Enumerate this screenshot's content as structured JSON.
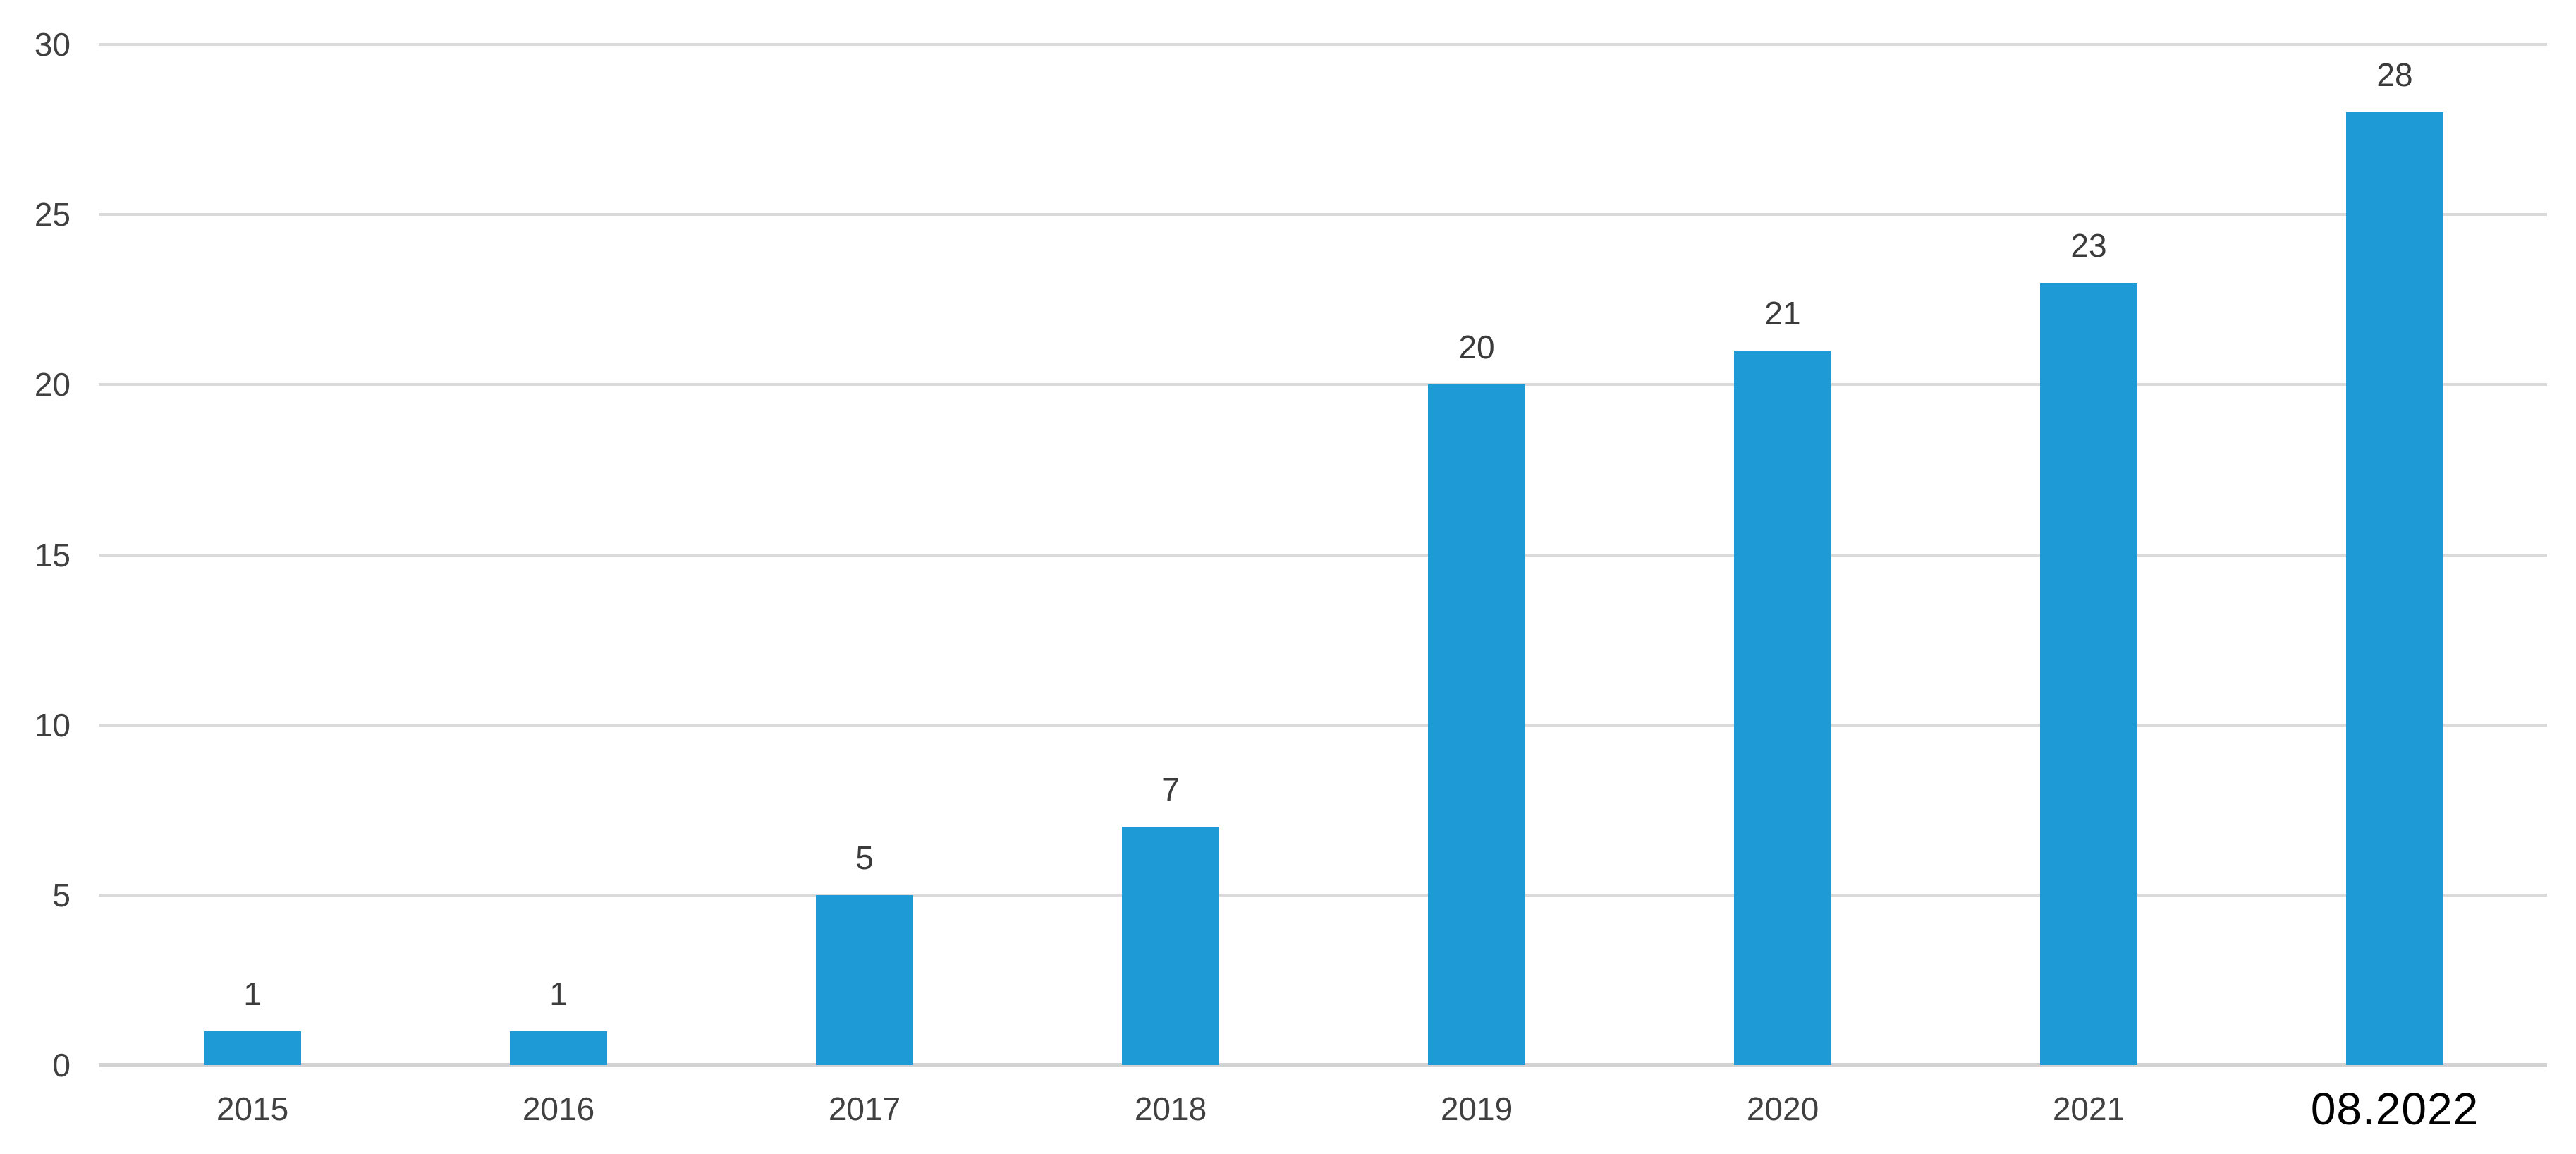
{
  "chart_data": {
    "type": "bar",
    "title": "",
    "xlabel": "",
    "ylabel": "",
    "categories": [
      "2015",
      "2016",
      "2017",
      "2018",
      "2019",
      "2020",
      "2021",
      "08.2022"
    ],
    "values": [
      1,
      1,
      5,
      7,
      20,
      21,
      23,
      28
    ],
    "yticks": [
      0,
      5,
      10,
      15,
      20,
      25,
      30
    ],
    "ylim": [
      0,
      30
    ],
    "grid": "horizontal",
    "legend": "none",
    "data_labels_shown": true,
    "highlight_last_category": true,
    "colors": {
      "bar": "#1E9BD7",
      "gridline": "#DADADA",
      "axis_line": "#D2D2D2",
      "tick_label": "#404040",
      "data_label": "#3B3B3B",
      "highlight_label": "#000000",
      "background": "#FFFFFF"
    }
  }
}
